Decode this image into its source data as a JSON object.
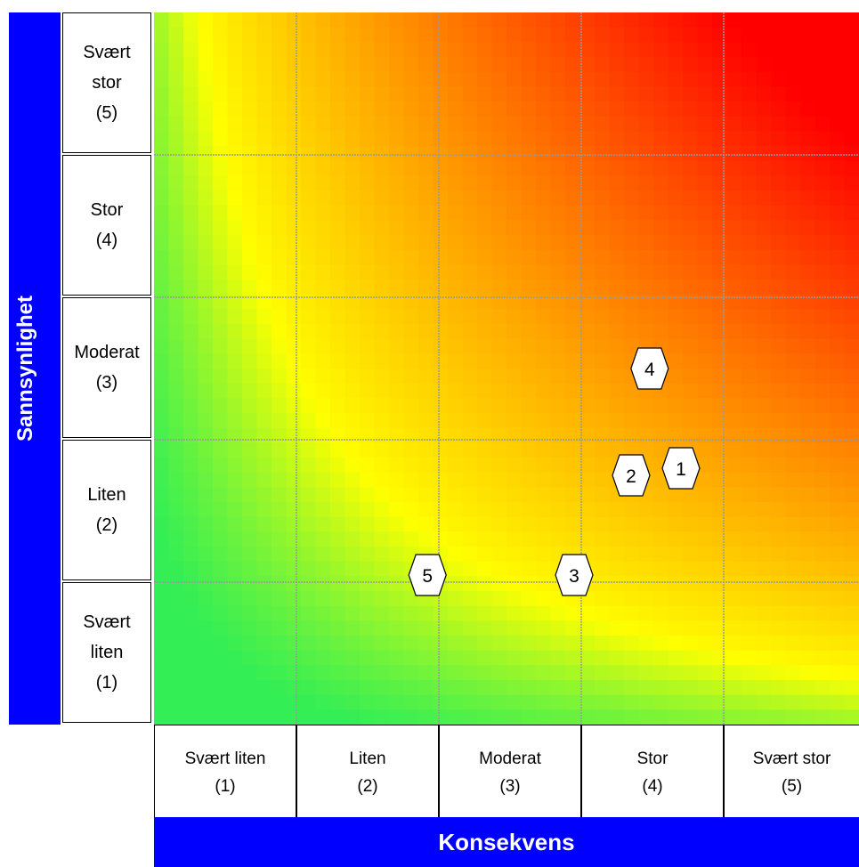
{
  "chart_data": {
    "type": "heatmap",
    "title": "",
    "xlabel": "Konsekvens",
    "ylabel": "Sannsynlighet",
    "x_categories": [
      {
        "name": "Svært liten",
        "code": "(1)"
      },
      {
        "name": "Liten",
        "code": "(2)"
      },
      {
        "name": "Moderat",
        "code": "(3)"
      },
      {
        "name": "Stor",
        "code": "(4)"
      },
      {
        "name": "Svært stor",
        "code": "(5)"
      }
    ],
    "y_categories": [
      {
        "name": "Svært liten",
        "code": "(1)"
      },
      {
        "name": "Liten",
        "code": "(2)"
      },
      {
        "name": "Moderat",
        "code": "(3)"
      },
      {
        "name": "Stor",
        "code": "(4)"
      },
      {
        "name": "Svært stor",
        "code": "(5)"
      }
    ],
    "xlim": [
      0.5,
      5.5
    ],
    "ylim": [
      0.5,
      5.5
    ],
    "grid": true,
    "colors": {
      "low": "#33ee55",
      "mid": "#ffff00",
      "high": "#ff0000",
      "axis_bar": "#0000ff",
      "grid": "#999999"
    },
    "points": [
      {
        "label": "1",
        "x": 4.2,
        "y": 2.3
      },
      {
        "label": "2",
        "x": 3.85,
        "y": 2.25
      },
      {
        "label": "3",
        "x": 3.45,
        "y": 1.55
      },
      {
        "label": "4",
        "x": 3.98,
        "y": 3.0
      },
      {
        "label": "5",
        "x": 2.42,
        "y": 1.55
      }
    ]
  }
}
